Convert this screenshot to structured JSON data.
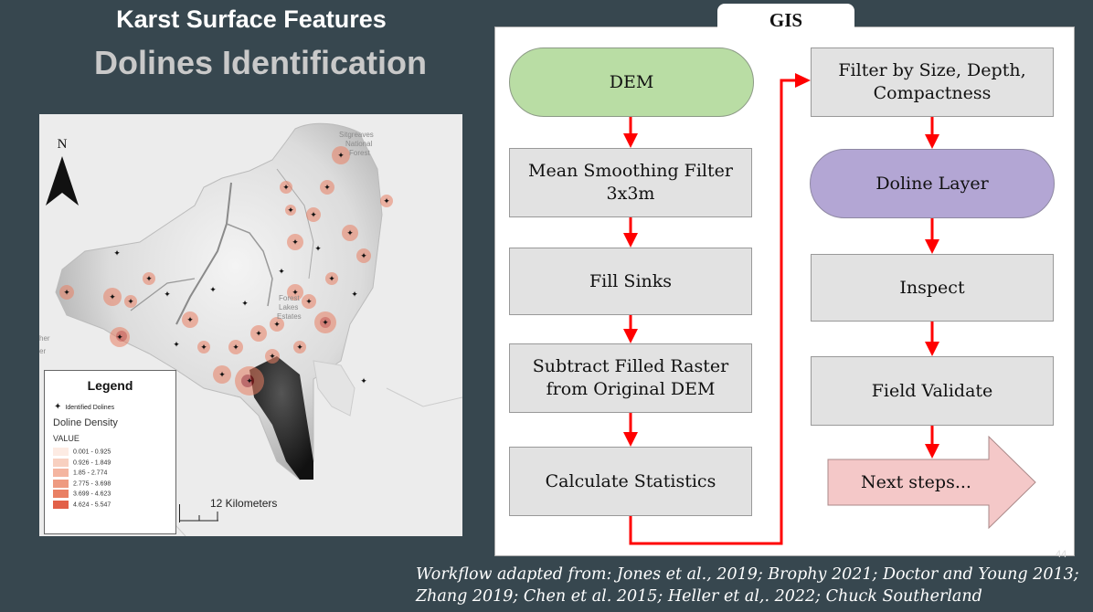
{
  "slide": {
    "title": "Karst Surface Features",
    "subtitle": "Dolines Identification",
    "page_number": "44",
    "credit_line1": "Workflow adapted from: Jones et al., 2019; Brophy 2021; Doctor and Young 2013;",
    "credit_line2": "Zhang 2019; Chen et al. 2015; Heller et al,. 2022; Chuck Southerland"
  },
  "map": {
    "north_label": "N",
    "place_labels": [
      "Sitgreaves",
      "National",
      "Forest",
      "Forest",
      "Lakes",
      "Estates",
      "her",
      "er"
    ],
    "scale_label": "12 Kilometers",
    "legend": {
      "title": "Legend",
      "dolines_label": "Identified Dolines",
      "density_label": "Doline Density",
      "value_label": "VALUE",
      "classes": [
        {
          "range": "0.001 - 0.925",
          "color": "#fdebe3"
        },
        {
          "range": "0.926 - 1.849",
          "color": "#f8d0c0"
        },
        {
          "range": "1.85 - 2.774",
          "color": "#f4b5a0"
        },
        {
          "range": "2.775 - 3.698",
          "color": "#ee9a80"
        },
        {
          "range": "3.699 - 4.623",
          "color": "#e98064"
        },
        {
          "range": "4.624 - 5.547",
          "color": "#e26048"
        }
      ]
    }
  },
  "workflow": {
    "tab_label": "GIS",
    "left_column": [
      "DEM",
      "Mean Smoothing Filter\n3x3m",
      "Fill Sinks",
      "Subtract Filled Raster\nfrom Original DEM",
      "Calculate Statistics"
    ],
    "right_column": [
      "Filter by Size, Depth,\nCompactness",
      "Doline Layer",
      "Inspect",
      "Field Validate",
      "Next steps..."
    ],
    "colors": {
      "start": "#b9dda4",
      "output": "#b3a6d4",
      "step": "#e2e2e2",
      "next": "#f4c8c8",
      "arrow": "#ff0000"
    }
  }
}
